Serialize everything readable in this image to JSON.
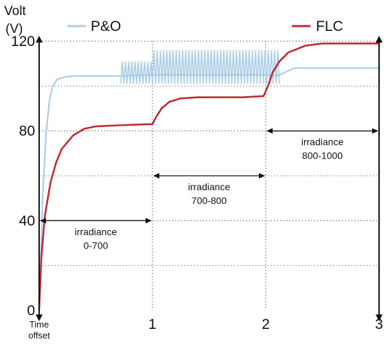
{
  "chart_data": {
    "type": "line",
    "ylabel_line1": "Volt",
    "ylabel_line2": "(V)",
    "xlim": [
      0,
      3
    ],
    "ylim": [
      0,
      120
    ],
    "x_ticks": [
      {
        "value": 0,
        "label": "Time"
      },
      {
        "value": 1,
        "label": "1"
      },
      {
        "value": 2,
        "label": "2"
      },
      {
        "value": 3,
        "label": "3"
      }
    ],
    "x_tick0_line2": "offset",
    "y_ticks": [
      {
        "value": 0,
        "label": "0"
      },
      {
        "value": 40,
        "label": "40"
      },
      {
        "value": 80,
        "label": "80"
      },
      {
        "value": 120,
        "label": "120"
      }
    ],
    "grid": true,
    "legend_position": "top",
    "series": [
      {
        "name": "P&O",
        "color": "#a9cde6",
        "x": [
          0,
          0.03,
          0.06,
          0.09,
          0.12,
          0.16,
          0.22,
          0.3,
          0.5,
          0.75,
          1.0,
          1.2,
          1.4,
          1.6,
          1.8,
          2.0,
          2.1,
          2.25,
          2.5,
          3.0
        ],
        "y": [
          0,
          50,
          78,
          93,
          100,
          103,
          104,
          104.5,
          104.5,
          104.5,
          105,
          105,
          105,
          105,
          105,
          105,
          104.5,
          108,
          108,
          108
        ],
        "oscillation": [
          {
            "x_start": 0.72,
            "x_end": 1.0,
            "center": 106,
            "amplitude": 5,
            "cycles": 10
          },
          {
            "x_start": 1.0,
            "x_end": 2.12,
            "center": 108.5,
            "amplitude": 7.5,
            "cycles": 40
          }
        ]
      },
      {
        "name": "FLC",
        "color": "#c1282d",
        "x": [
          0,
          0.02,
          0.05,
          0.1,
          0.15,
          0.2,
          0.3,
          0.4,
          0.5,
          0.7,
          0.95,
          1.0,
          1.03,
          1.08,
          1.15,
          1.25,
          1.4,
          1.6,
          1.8,
          1.98,
          2.02,
          2.06,
          2.12,
          2.2,
          2.35,
          2.5,
          2.7,
          3.0
        ],
        "y": [
          0,
          24,
          42,
          57,
          66,
          72,
          78,
          81,
          82,
          82.5,
          83,
          83,
          86,
          90,
          93,
          94.5,
          95,
          95,
          95,
          95.5,
          100,
          106,
          111,
          115,
          118,
          119,
          119,
          119
        ]
      }
    ],
    "annotations": [
      {
        "x_start": 0,
        "x_end": 1,
        "y": 40,
        "line1": "irradiance",
        "line2": "0-700"
      },
      {
        "x_start": 1,
        "x_end": 2,
        "y": 60,
        "line1": "irradiance",
        "line2": "700-800"
      },
      {
        "x_start": 2,
        "x_end": 3,
        "y": 80,
        "line1": "irradiance",
        "line2": "800-1000"
      }
    ]
  }
}
